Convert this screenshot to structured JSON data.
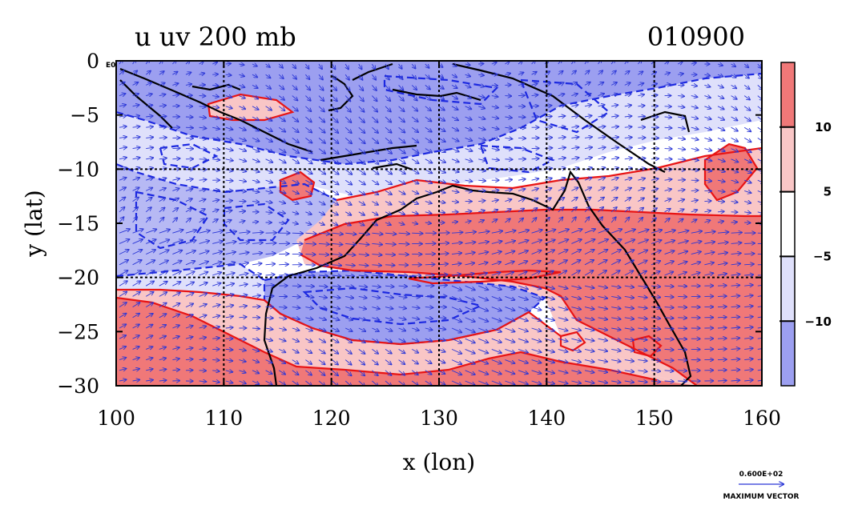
{
  "chart_data": {
    "type": "heatmap",
    "title_left": "u uv 200 mb",
    "title_right": "010900",
    "xlabel": "x (lon)",
    "ylabel": "y (lat)",
    "xlim": [
      100,
      160
    ],
    "ylim": [
      -30,
      0
    ],
    "x_ticks": [
      100,
      110,
      120,
      130,
      140,
      150,
      160
    ],
    "y_ticks": [
      0,
      -5,
      -10,
      -15,
      -20,
      -25,
      -30
    ],
    "x_tick_labels": [
      "100",
      "110",
      "120",
      "130",
      "140",
      "150",
      "160"
    ],
    "y_tick_labels": [
      "0",
      "−5",
      "−10",
      "−15",
      "−20",
      "−25",
      "−30"
    ],
    "grid_x": [
      110,
      120,
      130,
      140,
      150
    ],
    "grid_y": [
      -10,
      -20
    ],
    "grid": true,
    "corner_label": "E0",
    "colorbar": {
      "levels": [
        10,
        5,
        -5,
        -10
      ],
      "labels": [
        "10",
        "5",
        "−5",
        "−10"
      ],
      "colors": [
        "#f07878",
        "#f9c6c6",
        "#ffffff",
        "#dfe0fb",
        "#9c9ff0"
      ]
    },
    "vector_legend": {
      "value": "0.600E+02",
      "label": "MAXIMUM VECTOR",
      "color": "#2a36d6"
    },
    "colors": {
      "positive_contour": "#e81414",
      "negative_contour": "#1c28e0",
      "coastline": "#000000",
      "vectors": "#2a36d6"
    }
  }
}
